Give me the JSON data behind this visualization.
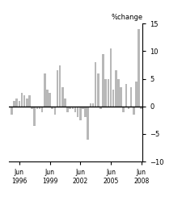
{
  "title": "%change",
  "bar_color": "#b8b8b8",
  "zero_line_color": "#000000",
  "ylim": [
    -10,
    15
  ],
  "yticks": [
    -10,
    -5,
    0,
    5,
    10,
    15
  ],
  "values": [
    -1.5,
    1.0,
    1.5,
    1.0,
    2.5,
    2.0,
    1.5,
    2.0,
    -0.5,
    -3.5,
    -0.5,
    -0.5,
    -1.0,
    6.0,
    3.0,
    2.5,
    -0.5,
    -1.5,
    6.5,
    7.5,
    3.5,
    1.5,
    -1.0,
    -0.5,
    -0.5,
    -1.0,
    -2.0,
    -2.5,
    -0.5,
    -2.0,
    -6.0,
    0.5,
    0.5,
    8.0,
    6.0,
    -0.5,
    9.5,
    5.0,
    5.0,
    10.5,
    3.0,
    6.5,
    5.0,
    3.5,
    -1.0,
    4.0,
    -0.5,
    3.5,
    -1.5,
    4.5,
    14.0,
    -0.5
  ],
  "jun_indices": [
    3,
    15,
    27,
    39,
    51
  ],
  "xtick_labels": [
    "Jun\n1996",
    "Jun\n1999",
    "Jun\n2002",
    "Jun\n2005",
    "Jun\n2008"
  ],
  "background_color": "#ffffff",
  "title_fontsize": 6,
  "tick_fontsize": 6,
  "xtick_fontsize": 5.5
}
